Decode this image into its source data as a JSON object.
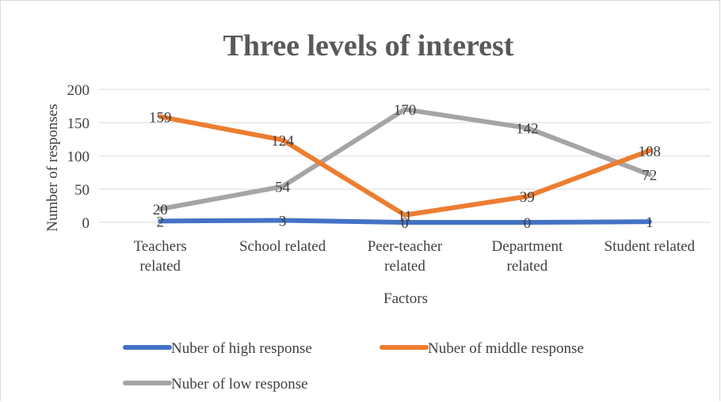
{
  "chart_data": {
    "type": "line",
    "title": "Three levels of interest",
    "xlabel": "Factors",
    "ylabel": "Number of responses",
    "categories": [
      [
        "Teachers",
        "related"
      ],
      [
        "School related"
      ],
      [
        "Peer-teacher",
        "related"
      ],
      [
        "Department",
        "related"
      ],
      [
        "Student related"
      ]
    ],
    "ylim": [
      0,
      200
    ],
    "yticks": [
      0,
      50,
      100,
      150,
      200
    ],
    "grid": true,
    "legend_position": "bottom",
    "series": [
      {
        "name": "Nuber of high response",
        "color": "#4472c4",
        "values": [
          2,
          3,
          0,
          0,
          1
        ]
      },
      {
        "name": "Nuber of middle response",
        "color": "#ed7d31",
        "values": [
          159,
          124,
          11,
          39,
          108
        ]
      },
      {
        "name": "Nuber of low response",
        "color": "#a5a5a5",
        "values": [
          20,
          54,
          170,
          142,
          72
        ]
      }
    ]
  }
}
